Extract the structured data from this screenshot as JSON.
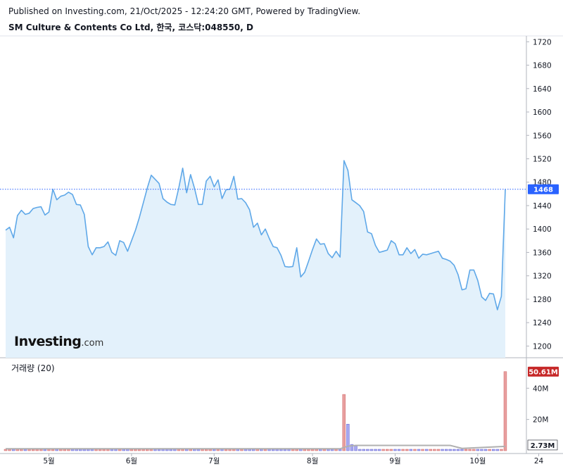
{
  "header": {
    "published": "Published on Investing.com, 21/Oct/2025 - 12:24:20 GMT, Powered by TradingView.",
    "symbol": "SM Culture & Contents Co Ltd, 한국, 코스닥:048550, D"
  },
  "logo": {
    "main": "Investing",
    "suffix": ".com"
  },
  "volume_panel": {
    "label": "거래량 (20)"
  },
  "colors": {
    "price_line": "#5fa8e8",
    "price_fill": "#e3f1fb",
    "last_badge": "#2962ff",
    "vol_up": "#e8a0a0",
    "vol_down": "#a8a8f0",
    "vol_badge": "#c62828",
    "ma_line": "#b0b0b0"
  },
  "chart_data": {
    "type": "area",
    "x_ticks": [
      "5월",
      "6월",
      "7월",
      "8월",
      "9월",
      "10월",
      "24"
    ],
    "price": {
      "ylim": [
        1180,
        1730
      ],
      "y_ticks": [
        1200,
        1240,
        1280,
        1320,
        1360,
        1400,
        1440,
        1480,
        1520,
        1560,
        1600,
        1640,
        1680,
        1720
      ],
      "last": 1468,
      "last_label": "1468",
      "values": [
        1398,
        1403,
        1385,
        1423,
        1432,
        1425,
        1427,
        1435,
        1437,
        1438,
        1424,
        1429,
        1468,
        1450,
        1456,
        1458,
        1463,
        1459,
        1442,
        1441,
        1425,
        1370,
        1356,
        1368,
        1368,
        1370,
        1378,
        1360,
        1355,
        1380,
        1377,
        1362,
        1380,
        1398,
        1420,
        1445,
        1470,
        1492,
        1485,
        1478,
        1452,
        1446,
        1442,
        1441,
        1470,
        1504,
        1462,
        1493,
        1470,
        1442,
        1442,
        1482,
        1490,
        1472,
        1484,
        1452,
        1467,
        1468,
        1490,
        1451,
        1452,
        1445,
        1433,
        1403,
        1410,
        1390,
        1400,
        1384,
        1370,
        1368,
        1355,
        1336,
        1335,
        1336,
        1368,
        1318,
        1326,
        1345,
        1365,
        1383,
        1374,
        1375,
        1358,
        1351,
        1362,
        1352,
        1517,
        1500,
        1450,
        1445,
        1440,
        1430,
        1395,
        1392,
        1372,
        1360,
        1362,
        1364,
        1380,
        1375,
        1356,
        1356,
        1368,
        1358,
        1365,
        1350,
        1357,
        1356,
        1358,
        1360,
        1362,
        1350,
        1348,
        1345,
        1338,
        1322,
        1296,
        1298,
        1330,
        1330,
        1312,
        1284,
        1278,
        1290,
        1289,
        1262,
        1285,
        1468
      ]
    },
    "volume": {
      "y_ticks_label": [
        "20M",
        "40M"
      ],
      "y_ticks": [
        20,
        40
      ],
      "ylim": [
        0,
        55
      ],
      "unit": "M",
      "last_label": "50.61M",
      "ma_label": "2.73M",
      "spikes": [
        {
          "index": 86,
          "value": 36,
          "dir": "up"
        },
        {
          "index": 87,
          "value": 17,
          "dir": "down"
        },
        {
          "index": 88,
          "value": 4,
          "dir": "down"
        },
        {
          "index": 89,
          "value": 3,
          "dir": "down"
        },
        {
          "index": 127,
          "value": 50.61,
          "dir": "up"
        }
      ],
      "base": 0.9,
      "ma": [
        {
          "index": 0,
          "value": 1.2
        },
        {
          "index": 85,
          "value": 1.2
        },
        {
          "index": 87,
          "value": 2.9
        },
        {
          "index": 89,
          "value": 3.4
        },
        {
          "index": 113,
          "value": 3.4
        },
        {
          "index": 116,
          "value": 1.5
        },
        {
          "index": 127,
          "value": 2.73
        }
      ]
    }
  }
}
